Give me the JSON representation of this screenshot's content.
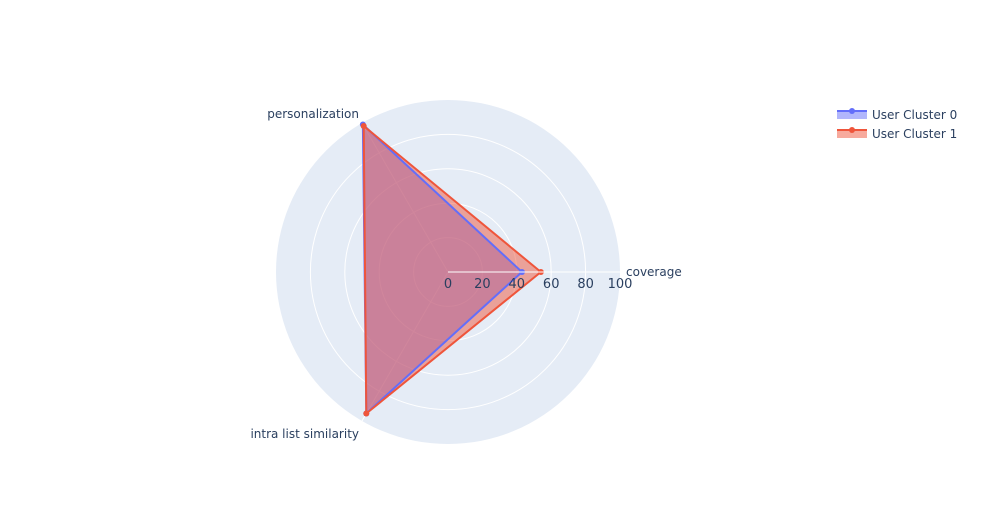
{
  "chart_data": {
    "type": "radar",
    "categories": [
      "coverage",
      "personalization",
      "intra list similarity"
    ],
    "series": [
      {
        "name": "User Cluster 0",
        "values": [
          43,
          99,
          95
        ],
        "color": "#636efa"
      },
      {
        "name": "User Cluster 1",
        "values": [
          54,
          98,
          95
        ],
        "color": "#ef553b"
      }
    ],
    "radial_ticks": [
      "0",
      "20",
      "40",
      "60",
      "80",
      "100"
    ],
    "radial_range": [
      0,
      100
    ],
    "legend_position": "top-right",
    "grid": true,
    "background_color": "#e5ecf6"
  }
}
